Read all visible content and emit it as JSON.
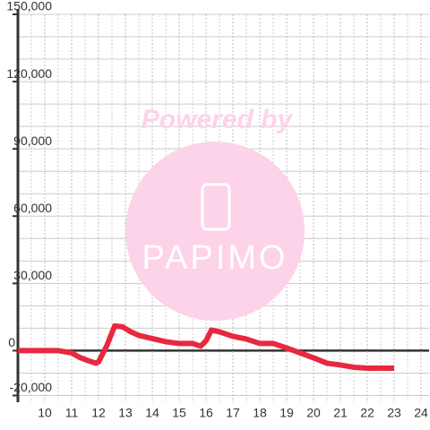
{
  "chart_data": {
    "type": "line",
    "watermark": {
      "line1": "Powered by",
      "line2": "PAPIMO"
    },
    "x": [
      9,
      9.5,
      10,
      10.5,
      11,
      11.3,
      11.6,
      11.9,
      12,
      12.3,
      12.6,
      12.9,
      13.2,
      13.5,
      14,
      14.5,
      15,
      15.5,
      15.8,
      16,
      16.2,
      16.5,
      17,
      17.5,
      18,
      18.5,
      19,
      19.5,
      20,
      20.5,
      21,
      21.5,
      22,
      22.5,
      23
    ],
    "series": [
      {
        "color": "#e8283f",
        "values": [
          0,
          0,
          0,
          0,
          -1000,
          -3000,
          -4400,
          -5600,
          -5000,
          2000,
          11000,
          10600,
          8400,
          6800,
          5400,
          4000,
          3200,
          3200,
          2000,
          4400,
          9200,
          8400,
          6400,
          5200,
          3200,
          3200,
          1200,
          -1000,
          -3200,
          -5600,
          -6400,
          -7400,
          -7800,
          -7800,
          -7800
        ]
      }
    ],
    "xlim": [
      9,
      24.3
    ],
    "xticks": [
      10,
      11,
      12,
      13,
      14,
      15,
      16,
      17,
      18,
      19,
      20,
      21,
      22,
      23,
      24
    ],
    "ylim": [
      -23000,
      150000
    ],
    "yticks": [
      {
        "value": -20000,
        "label": "-20,000"
      },
      0,
      {
        "value": 30000,
        "label": "30,000"
      },
      {
        "value": 60000,
        "label": "60,000"
      },
      {
        "value": 90000,
        "label": "90,000"
      },
      {
        "value": 120000,
        "label": "120,000"
      },
      {
        "value": 150000,
        "label": "150,000"
      }
    ],
    "y_minor_ticks": [
      -10000,
      10000,
      20000,
      40000,
      50000,
      70000,
      80000,
      100000,
      110000,
      130000,
      140000
    ],
    "x_minor_ticks": [
      9.5,
      10.5,
      11.5,
      12.5,
      13.5,
      14.5,
      15.5,
      16.5,
      17.5,
      18.5,
      19.5,
      20.5,
      21.5,
      22.5,
      23.5
    ],
    "grid": true
  }
}
